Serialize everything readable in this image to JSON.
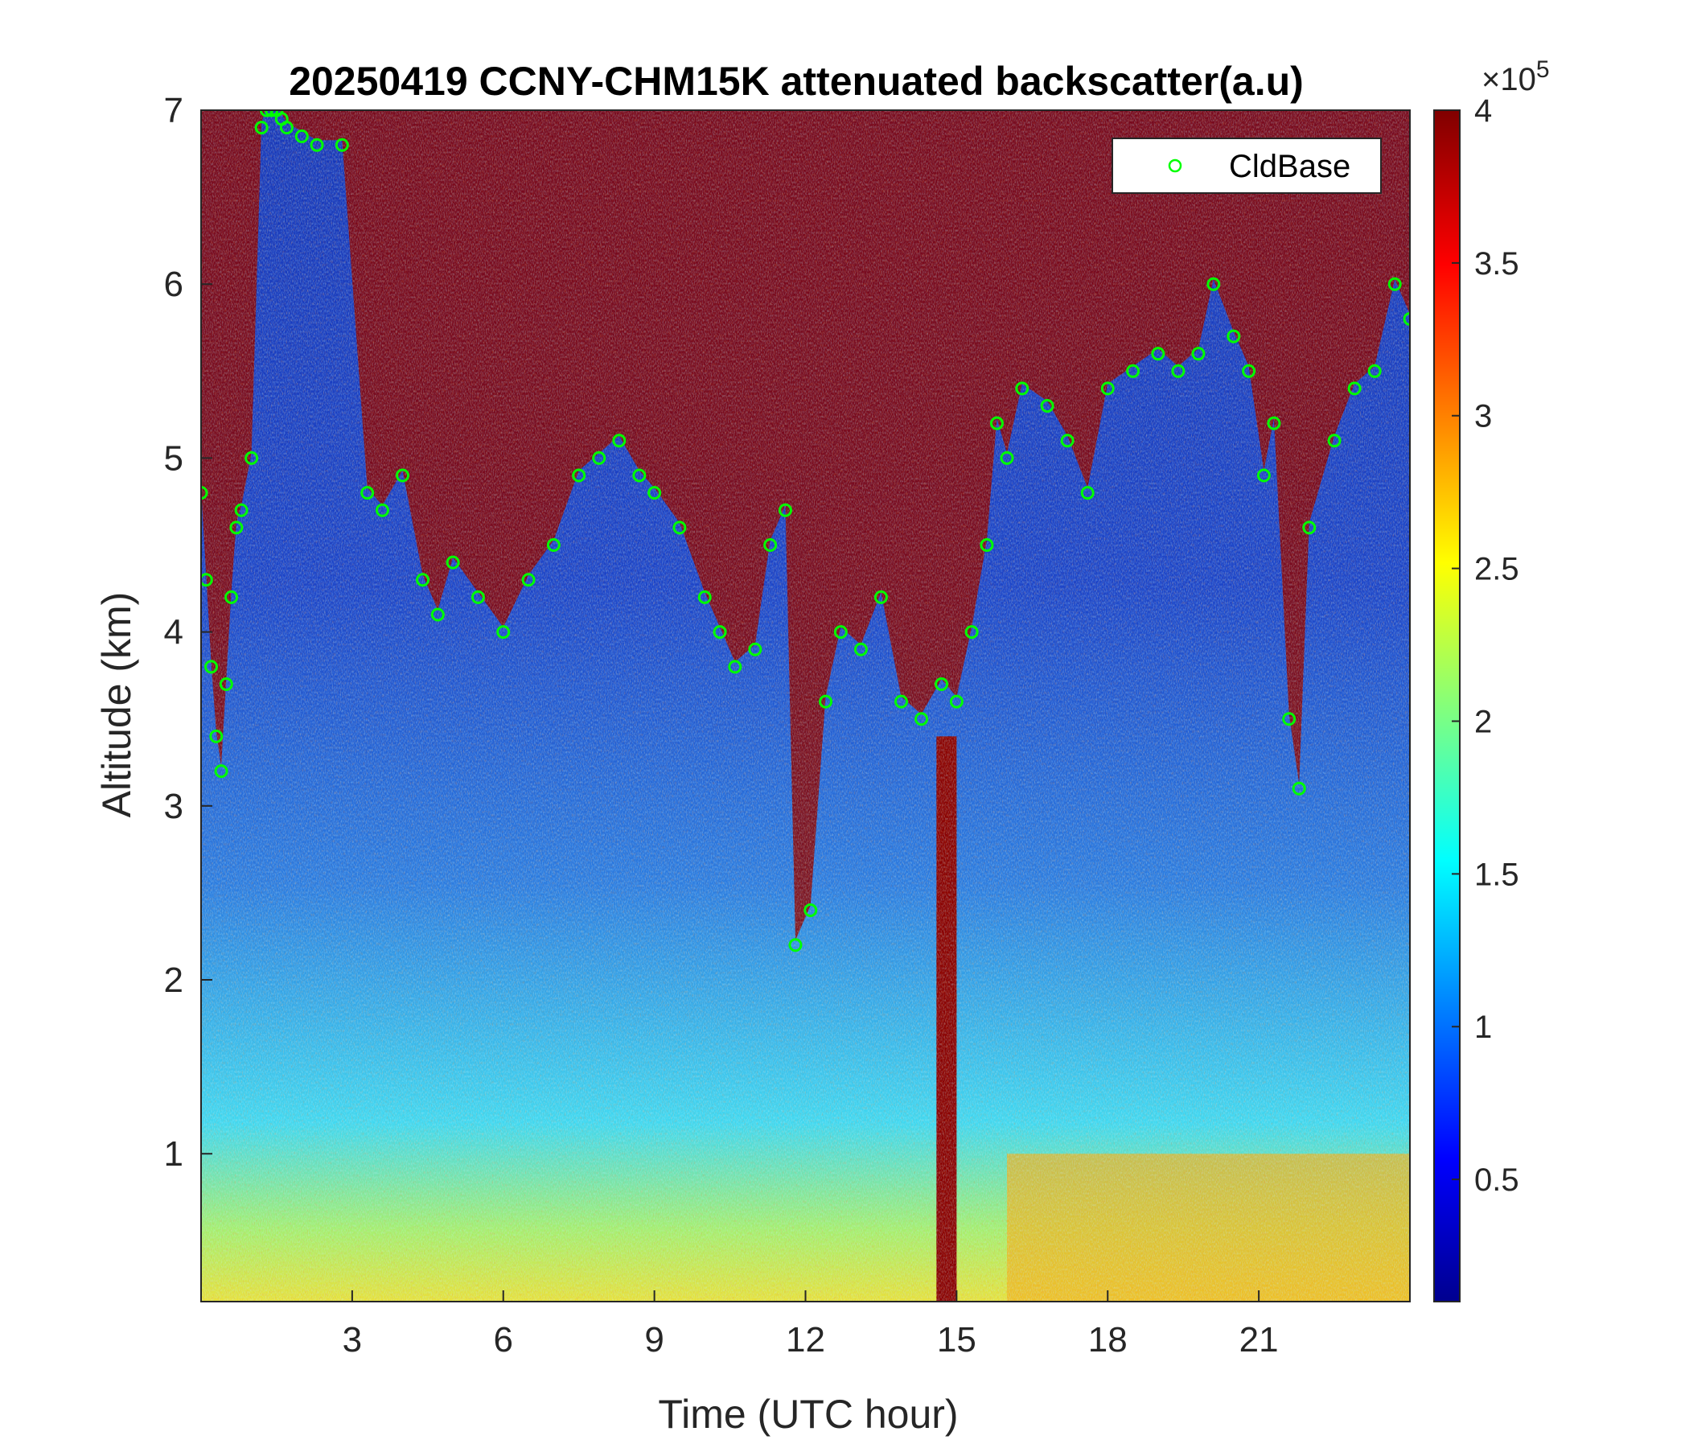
{
  "chart_data": {
    "type": "heatmap",
    "title": "20250419 CCNY-CHM15K attenuated backscatter(a.u)",
    "xlabel": "Time (UTC hour)",
    "ylabel": "Altitude (km)",
    "xlim": [
      0,
      24
    ],
    "ylim": [
      0.15,
      7
    ],
    "x_ticks": [
      3,
      6,
      9,
      12,
      15,
      18,
      21
    ],
    "y_ticks": [
      1,
      2,
      3,
      4,
      5,
      6,
      7
    ],
    "grid": false,
    "legend_position": "top-right",
    "colorbar": {
      "label": "",
      "exponent_label": "×10",
      "exponent": "5",
      "range": [
        0.1,
        4
      ],
      "ticks": [
        0.5,
        1,
        1.5,
        2,
        2.5,
        3,
        3.5,
        4
      ],
      "colormap": "jet"
    },
    "series": [
      {
        "name": "CldBase",
        "type": "scatter",
        "marker": "open-circle",
        "color": "#00ff00",
        "x": [
          0.0,
          0.1,
          0.2,
          0.3,
          0.4,
          0.5,
          0.6,
          0.7,
          0.8,
          1.0,
          1.2,
          1.3,
          1.4,
          1.5,
          1.6,
          1.7,
          2.0,
          2.3,
          2.8,
          3.3,
          3.6,
          4.0,
          4.4,
          4.7,
          5.0,
          5.5,
          6.0,
          6.5,
          7.0,
          7.5,
          7.9,
          8.3,
          8.7,
          9.0,
          9.5,
          10.0,
          10.3,
          10.6,
          11.0,
          11.3,
          11.6,
          11.8,
          12.1,
          12.4,
          12.7,
          13.1,
          13.5,
          13.9,
          14.3,
          14.7,
          15.0,
          15.3,
          15.6,
          15.8,
          16.0,
          16.3,
          16.8,
          17.2,
          17.6,
          18.0,
          18.5,
          19.0,
          19.4,
          19.8,
          20.1,
          20.5,
          20.8,
          21.1,
          21.3,
          21.6,
          21.8,
          22.0,
          22.5,
          22.9,
          23.3,
          23.7,
          24.0
        ],
        "y": [
          4.8,
          4.3,
          3.8,
          3.4,
          3.2,
          3.7,
          4.2,
          4.6,
          4.7,
          5.0,
          6.9,
          7.0,
          7.0,
          7.0,
          6.95,
          6.9,
          6.85,
          6.8,
          6.8,
          4.8,
          4.7,
          4.9,
          4.3,
          4.1,
          4.4,
          4.2,
          4.0,
          4.3,
          4.5,
          4.9,
          5.0,
          5.1,
          4.9,
          4.8,
          4.6,
          4.2,
          4.0,
          3.8,
          3.9,
          4.5,
          4.7,
          2.2,
          2.4,
          3.6,
          4.0,
          3.9,
          4.2,
          3.6,
          3.5,
          3.7,
          3.6,
          4.0,
          4.5,
          5.2,
          5.0,
          5.4,
          5.3,
          5.1,
          4.8,
          5.4,
          5.5,
          5.6,
          5.5,
          5.6,
          6.0,
          5.7,
          5.5,
          4.9,
          5.2,
          3.5,
          3.1,
          4.6,
          5.1,
          5.4,
          5.5,
          6.0,
          5.8
        ]
      }
    ],
    "annotations": {
      "strong_backscatter_regions": "dark red cloud layers near 4-7 km",
      "surface_layer": "high backscatter near ground after 16 UTC"
    }
  },
  "legend": {
    "label": "CldBase"
  }
}
